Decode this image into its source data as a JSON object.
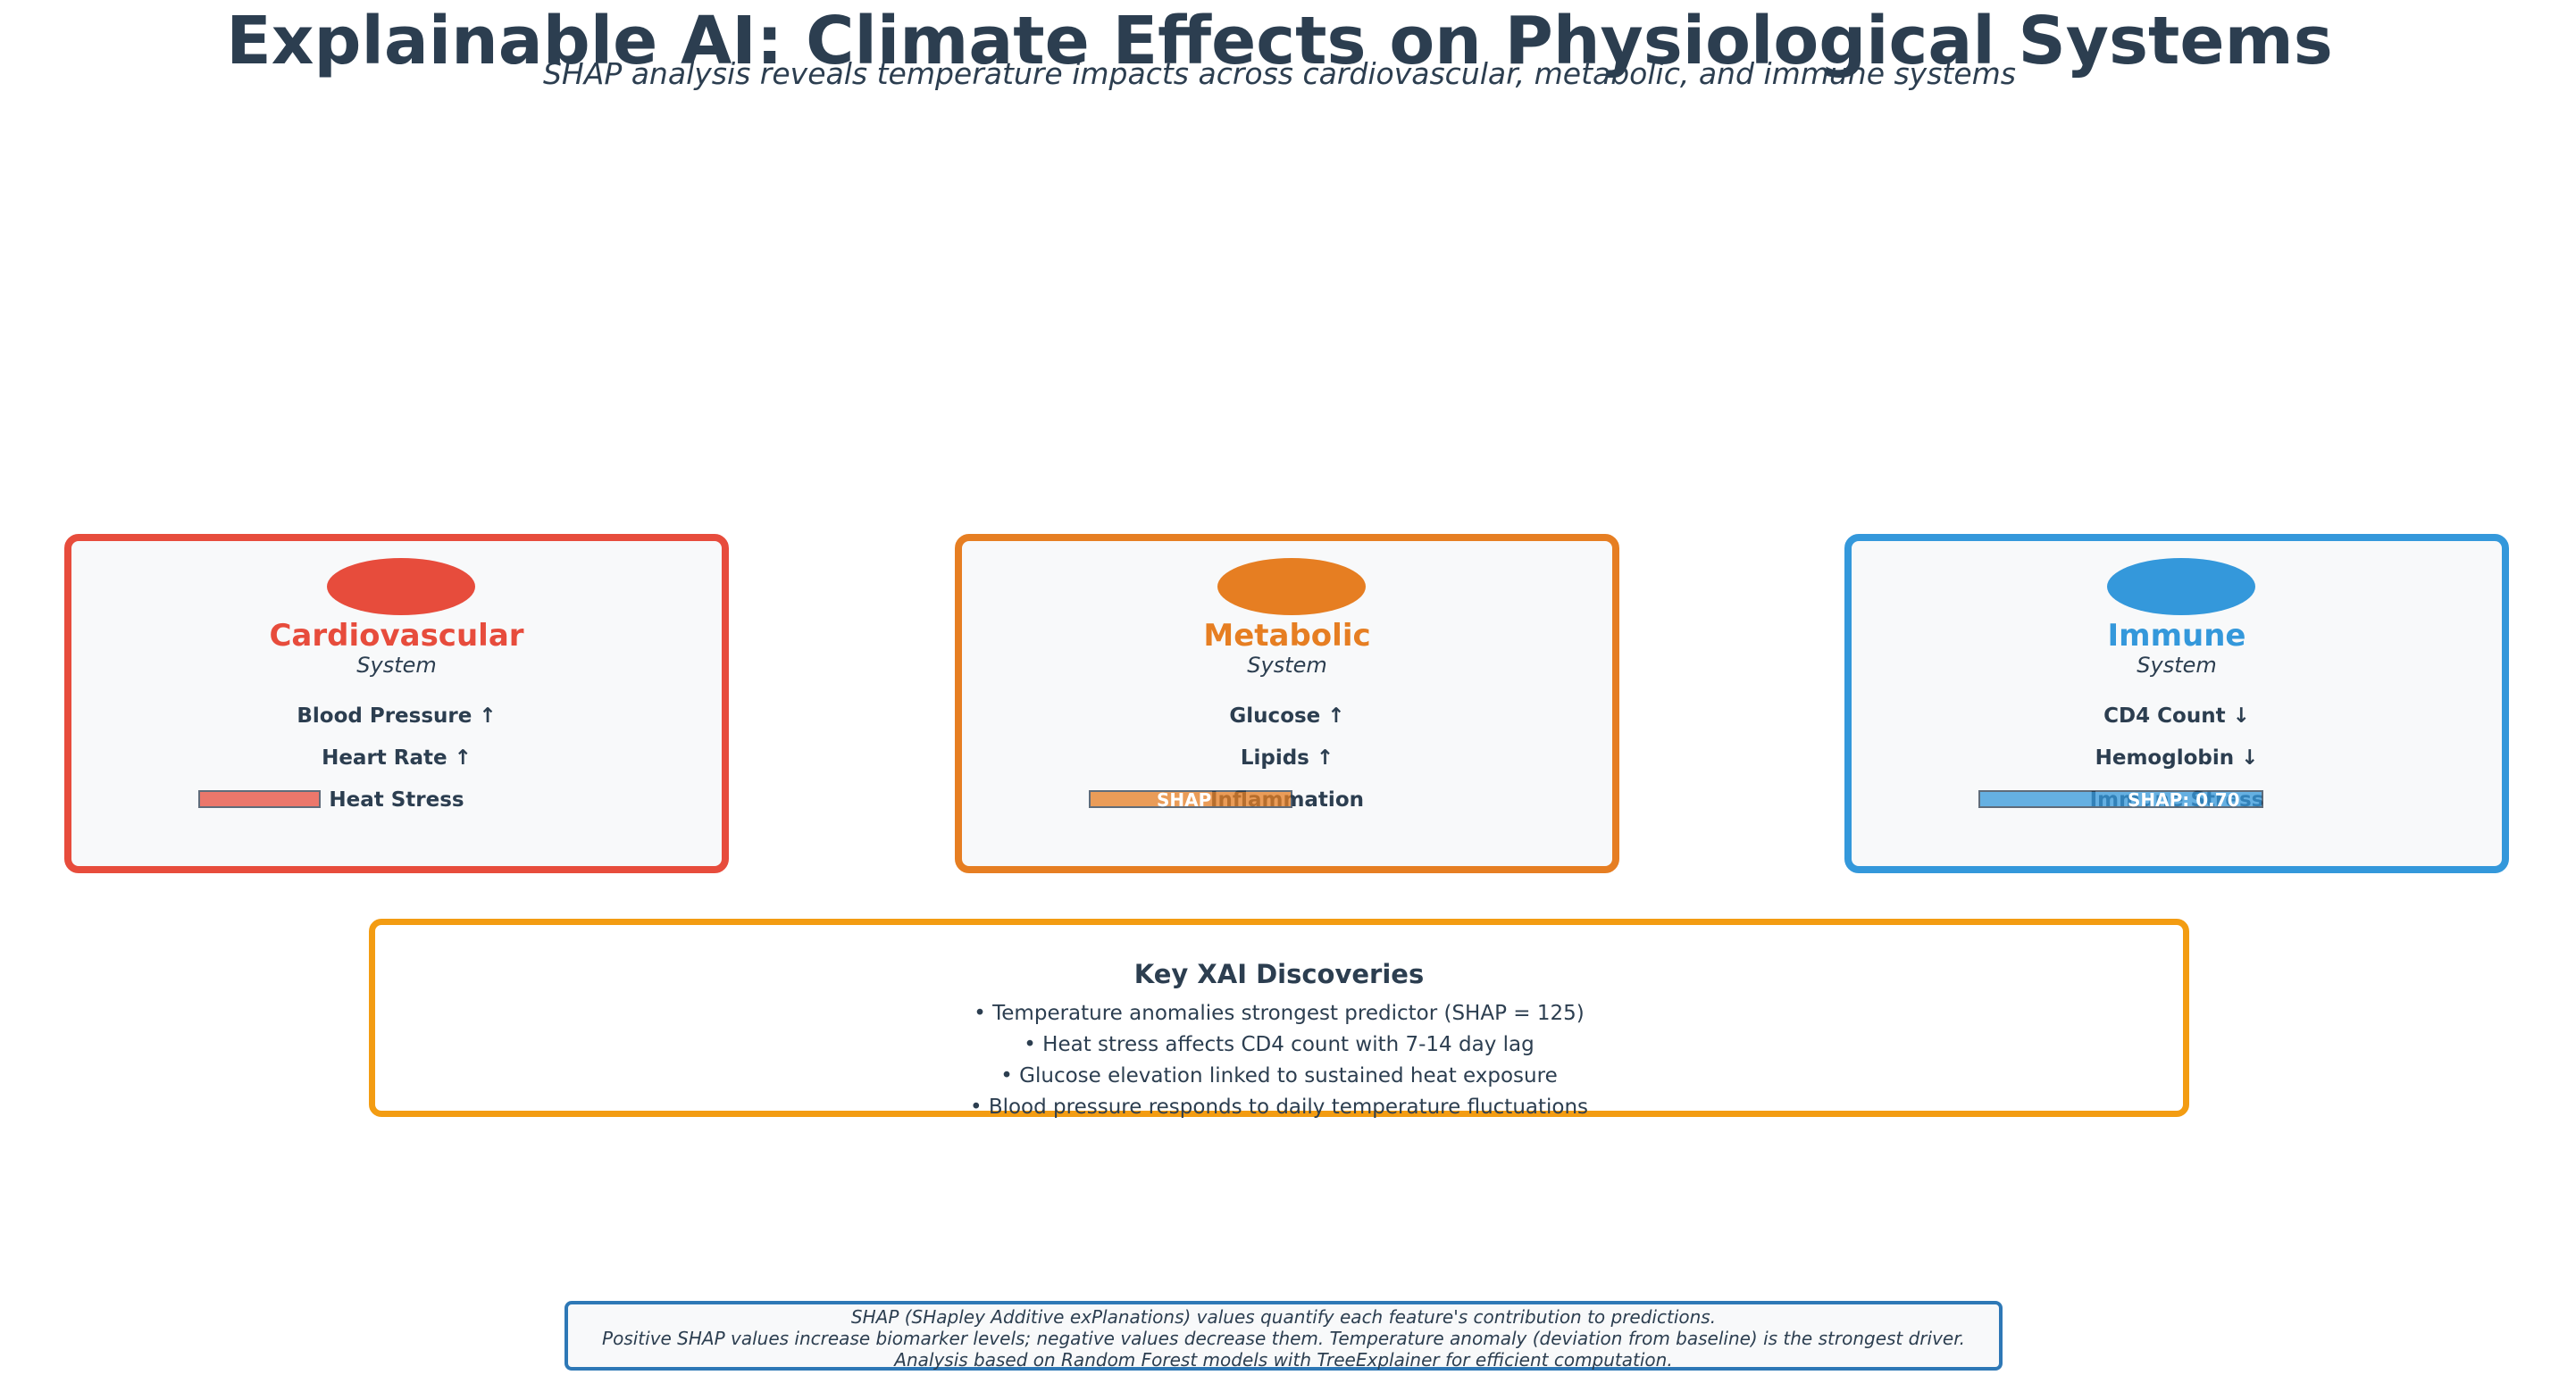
{
  "title": "Explainable AI: Climate Effects on Physiological Systems",
  "subtitle": "SHAP analysis reveals temperature impacts across cardiovascular, metabolic, and immune systems",
  "systems": [
    {
      "name": "Cardiovascular",
      "sub": "System",
      "color": "#e74c3c",
      "items": [
        "Blood Pressure ↑",
        "Heart Rate ↑",
        "Heat Stress"
      ],
      "shap_label": "",
      "shap_value": 0.3
    },
    {
      "name": "Metabolic",
      "sub": "System",
      "color": "#e67e22",
      "items": [
        "Glucose ↑",
        "Lipids ↑",
        "Inflammation"
      ],
      "shap_label": "SHAP",
      "shap_value": 0.5
    },
    {
      "name": "Immune",
      "sub": "System",
      "color": "#3498db",
      "items": [
        "CD4 Count ↓",
        "Hemoglobin ↓",
        "Immune Stress"
      ],
      "shap_label": "SHAP: 0.70",
      "shap_value": 0.7
    }
  ],
  "discoveries": {
    "title": "Key XAI Discoveries",
    "items": [
      "• Temperature anomalies strongest predictor (SHAP = 125)",
      "• Heat stress affects CD4 count with 7-14 day lag",
      "• Glucose elevation linked to sustained heat exposure",
      "• Blood pressure responds to daily temperature fluctuations"
    ],
    "border_color": "#f39c12"
  },
  "footer": {
    "lines": [
      "SHAP (SHapley Additive exPlanations) values quantify each feature's contribution to predictions.",
      "Positive SHAP values increase biomarker levels; negative values decrease them. Temperature anomaly (deviation from baseline) is the strongest driver.",
      "Analysis based on Random Forest models with TreeExplainer for efficient computation."
    ],
    "border_color": "#2e78b6"
  }
}
